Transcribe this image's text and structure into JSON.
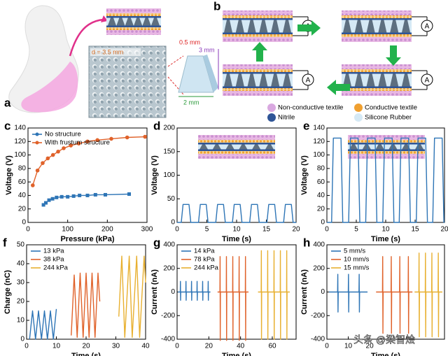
{
  "diagram_a": {
    "label": "a",
    "dimensions": [
      "d = 3.5 mm",
      "0.5 mm",
      "3 mm",
      "2 mm"
    ]
  },
  "diagram_b": {
    "label": "b",
    "meter_symbols": [
      "A",
      "A",
      "A",
      "A"
    ],
    "legend": [
      "Non-conductive textile",
      "Conductive textile",
      "Nitrile",
      "Silicone Rubber"
    ]
  },
  "watermark": "头条 @梁智烩",
  "chart_data": [
    {
      "type": "line",
      "panel_label": "c",
      "xlabel": "Pressure (kPa)",
      "ylabel": "Voltage (V)",
      "xlim": [
        0,
        300
      ],
      "xticks": [
        0,
        100,
        200,
        300
      ],
      "ylim": [
        0,
        140
      ],
      "yticks": [
        0,
        20,
        40,
        60,
        80,
        100,
        120,
        140
      ],
      "markers": true,
      "legend": "upper left",
      "series": [
        {
          "name": "No structure",
          "color": "#2e75b6",
          "marker": "square",
          "x": [
            39,
            45,
            53,
            62,
            72,
            85,
            100,
            115,
            130,
            150,
            170,
            195,
            255
          ],
          "values": [
            26,
            29,
            33,
            35,
            37,
            38,
            38,
            39,
            40,
            40,
            41,
            41,
            42
          ]
        },
        {
          "name": "With frustum structure",
          "color": "#e0622a",
          "marker": "circle",
          "x": [
            12,
            24,
            37,
            50,
            63,
            76,
            90,
            108,
            128,
            150,
            175,
            210,
            250,
            295
          ],
          "values": [
            55,
            77,
            88,
            95,
            100,
            105,
            110,
            114,
            117,
            120,
            122,
            124,
            126,
            127
          ]
        }
      ]
    },
    {
      "type": "line",
      "panel_label": "d",
      "xlabel": "Time (s)",
      "ylabel": "Voltage (V)",
      "xlim": [
        0,
        20
      ],
      "xticks": [
        0,
        5,
        10,
        15,
        20
      ],
      "ylim": [
        0,
        200
      ],
      "yticks": [
        0,
        50,
        100,
        150,
        200
      ],
      "series": [
        {
          "color": "#2e75b6",
          "x": [
            0,
            0.7,
            1.0,
            2.0,
            2.3,
            3.6,
            3.9,
            4.9,
            5.2,
            6.5,
            6.8,
            7.8,
            8.1,
            9.3,
            9.6,
            10.6,
            10.9,
            12.2,
            12.5,
            13.5,
            13.8,
            15.1,
            15.4,
            16.4,
            16.7,
            17.9,
            18.2,
            19.2,
            19.5,
            20
          ],
          "values": [
            0,
            0,
            38,
            38,
            0,
            0,
            38,
            38,
            0,
            0,
            38,
            38,
            0,
            0,
            38,
            38,
            0,
            0,
            38,
            38,
            0,
            0,
            38,
            38,
            0,
            0,
            38,
            38,
            0,
            0
          ]
        }
      ]
    },
    {
      "type": "line",
      "panel_label": "e",
      "xlabel": "Time (s)",
      "ylabel": "Voltage (V)",
      "xlim": [
        0,
        20
      ],
      "xticks": [
        0,
        5,
        10,
        15,
        20
      ],
      "ylim": [
        0,
        140
      ],
      "yticks": [
        0,
        20,
        40,
        60,
        80,
        100,
        120,
        140
      ],
      "series": [
        {
          "color": "#2e75b6",
          "x": [
            0,
            0.8,
            1.1,
            2.4,
            2.7,
            3.7,
            4.0,
            5.3,
            5.6,
            6.6,
            6.9,
            8.2,
            8.5,
            9.5,
            9.8,
            11.1,
            11.4,
            12.3,
            12.6,
            13.9,
            14.2,
            15.2,
            15.5,
            16.8,
            17.1,
            18.0,
            18.3,
            19.6,
            19.9,
            20
          ],
          "values": [
            0,
            0,
            125,
            125,
            0,
            0,
            125,
            125,
            0,
            0,
            125,
            125,
            0,
            0,
            125,
            125,
            0,
            0,
            125,
            125,
            0,
            0,
            125,
            125,
            0,
            0,
            125,
            125,
            0,
            0
          ]
        }
      ]
    },
    {
      "type": "line",
      "panel_label": "f",
      "xlabel": "Time (s)",
      "ylabel": "Charge (nC)",
      "xlim": [
        0,
        40
      ],
      "xticks": [
        0,
        10,
        20,
        30,
        40
      ],
      "ylim": [
        0,
        50
      ],
      "yticks": [
        0,
        10,
        20,
        30,
        40,
        50
      ],
      "legend": "upper left",
      "series": [
        {
          "name": "13 kPa",
          "color": "#2e75b6",
          "x": [
            1,
            2,
            3,
            4,
            5,
            6,
            7,
            8,
            9,
            10
          ],
          "values": [
            0,
            15,
            0,
            15,
            0,
            15,
            0,
            15,
            0,
            16
          ]
        },
        {
          "name": "38 kPa",
          "color": "#e0622a",
          "x": [
            15,
            16,
            17,
            18,
            19,
            20,
            21,
            22,
            23,
            24,
            24.6
          ],
          "values": [
            2,
            34,
            1,
            35,
            1,
            35,
            1,
            35,
            1,
            35,
            20
          ]
        },
        {
          "name": "244 kPa",
          "color": "#e8b030",
          "x": [
            31,
            32,
            33,
            34.5,
            35.5,
            37,
            38,
            39.5,
            40
          ],
          "values": [
            12,
            44,
            1,
            44,
            1,
            44,
            1,
            44,
            30
          ]
        }
      ]
    },
    {
      "type": "line",
      "panel_label": "g",
      "xlabel": "Time (s)",
      "ylabel": "Current (nA)",
      "xlim": [
        0,
        75
      ],
      "xticks": [
        0,
        20,
        40,
        60
      ],
      "ylim": [
        -400,
        400
      ],
      "yticks": [
        -400,
        -200,
        0,
        200,
        400
      ],
      "legend": "upper left",
      "series": [
        {
          "name": "14 kPa",
          "color": "#2e75b6",
          "x": [
            0.5,
            2,
            2.1,
            2.2,
            2.3,
            5.5,
            5.6,
            5.7,
            5.8,
            9,
            9.1,
            9.2,
            9.3,
            12.5,
            12.6,
            12.7,
            12.8,
            16,
            16.1,
            16.2,
            16.3,
            19.5,
            19.6,
            19.7,
            19.8,
            21
          ],
          "values": [
            0,
            0,
            90,
            -70,
            0,
            0,
            90,
            -70,
            0,
            0,
            90,
            -70,
            0,
            0,
            90,
            -70,
            0,
            0,
            90,
            -70,
            0,
            0,
            90,
            -70,
            0,
            0
          ]
        },
        {
          "name": "78 kPa",
          "color": "#e0622a",
          "x": [
            25.5,
            27,
            27.1,
            27.2,
            27.3,
            31,
            31.1,
            31.2,
            31.3,
            35,
            35.1,
            35.2,
            35.3,
            39,
            39.1,
            39.2,
            39.3,
            43,
            43.1,
            43.2,
            43.3,
            45
          ],
          "values": [
            0,
            0,
            300,
            -410,
            0,
            0,
            300,
            -410,
            0,
            0,
            300,
            -410,
            0,
            0,
            300,
            -410,
            0,
            0,
            300,
            -410,
            0,
            0
          ]
        },
        {
          "name": "244 kPa",
          "color": "#e8b030",
          "x": [
            51,
            53,
            53.1,
            53.2,
            53.3,
            57,
            57.1,
            57.2,
            57.3,
            61,
            61.1,
            61.2,
            61.3,
            65,
            65.1,
            65.2,
            65.3,
            69,
            69.1,
            69.2,
            69.3,
            71
          ],
          "values": [
            0,
            0,
            350,
            -400,
            0,
            0,
            350,
            -400,
            0,
            0,
            350,
            -400,
            0,
            0,
            350,
            -400,
            0,
            0,
            350,
            -400,
            0,
            0
          ]
        }
      ]
    },
    {
      "type": "line",
      "panel_label": "h",
      "xlabel": "Time (s)",
      "ylabel": "Current (nA)",
      "xlim": [
        0,
        55
      ],
      "xticks": [
        0,
        10,
        20
      ],
      "ylim": [
        -400,
        400
      ],
      "yticks": [
        -400,
        -200,
        0,
        200,
        400
      ],
      "legend": "upper left",
      "series": [
        {
          "name": "5 mm/s",
          "color": "#2e75b6",
          "x": [
            1,
            5,
            5.1,
            5.2,
            5.3,
            10,
            10.1,
            10.2,
            10.3,
            15,
            15.1,
            15.2,
            15.3,
            19
          ],
          "values": [
            0,
            0,
            150,
            -170,
            0,
            0,
            150,
            -170,
            0,
            0,
            150,
            -170,
            0,
            0
          ]
        },
        {
          "name": "10 mm/s",
          "color": "#e0622a",
          "x": [
            23,
            26,
            26.1,
            26.2,
            26.3,
            30,
            30.1,
            30.2,
            30.3,
            34,
            34.1,
            34.2,
            34.3,
            38,
            38.1,
            38.2,
            38.3,
            40
          ],
          "values": [
            0,
            0,
            300,
            -350,
            0,
            0,
            300,
            -350,
            0,
            0,
            300,
            -350,
            0,
            0,
            300,
            -350,
            0,
            0
          ]
        },
        {
          "name": "15 mm/s",
          "color": "#e8b030",
          "x": [
            41,
            43,
            43.1,
            43.2,
            43.3,
            46,
            46.1,
            46.2,
            46.3,
            49,
            49.1,
            49.2,
            49.3,
            52,
            52.1,
            52.2,
            52.3,
            54
          ],
          "values": [
            0,
            0,
            330,
            -380,
            0,
            0,
            330,
            -380,
            0,
            0,
            330,
            -380,
            0,
            0,
            330,
            -380,
            0,
            0
          ]
        }
      ]
    }
  ]
}
